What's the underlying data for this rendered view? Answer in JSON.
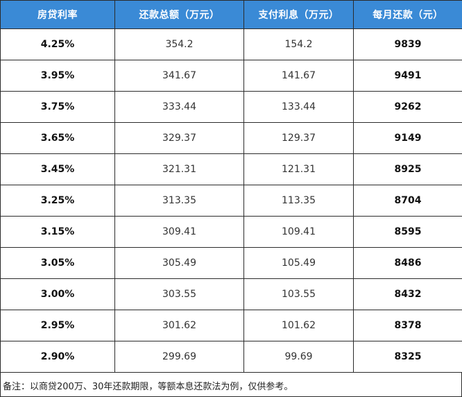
{
  "table": {
    "headers": [
      "房贷利率",
      "还款总额（万元）",
      "支付利息（万元）",
      "每月还款（元）"
    ],
    "rows": [
      {
        "rate": "4.25%",
        "total": "354.2",
        "interest": "154.2",
        "monthly": "9839"
      },
      {
        "rate": "3.95%",
        "total": "341.67",
        "interest": "141.67",
        "monthly": "9491"
      },
      {
        "rate": "3.75%",
        "total": "333.44",
        "interest": "133.44",
        "monthly": "9262"
      },
      {
        "rate": "3.65%",
        "total": "329.37",
        "interest": "129.37",
        "monthly": "9149"
      },
      {
        "rate": "3.45%",
        "total": "321.31",
        "interest": "121.31",
        "monthly": "8925"
      },
      {
        "rate": "3.25%",
        "total": "313.35",
        "interest": "113.35",
        "monthly": "8704"
      },
      {
        "rate": "3.15%",
        "total": "309.41",
        "interest": "109.41",
        "monthly": "8595"
      },
      {
        "rate": "3.05%",
        "total": "305.49",
        "interest": "105.49",
        "monthly": "8486"
      },
      {
        "rate": "3.00%",
        "total": "303.55",
        "interest": "103.55",
        "monthly": "8432"
      },
      {
        "rate": "2.95%",
        "total": "301.62",
        "interest": "101.62",
        "monthly": "8378"
      },
      {
        "rate": "2.90%",
        "total": "299.69",
        "interest": "99.69",
        "monthly": "8325"
      }
    ]
  },
  "note": "备注：以商贷200万、30年还款期限，等额本息还款法为例，仅供参考。",
  "colors": {
    "header_bg": "#3a8ad6",
    "header_text": "#ffffff",
    "border": "#2b2b2b"
  }
}
